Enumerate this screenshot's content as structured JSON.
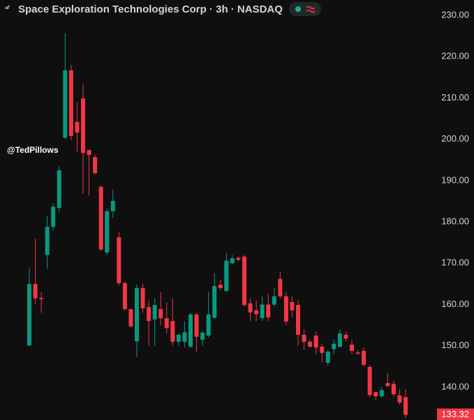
{
  "chart_data": {
    "type": "candlestick",
    "title": "Space Exploration Technologies Corp · 3h · NASDAQ",
    "watermark": "@TedPillows",
    "up_color": "#089981",
    "down_color": "#f23645",
    "ylim": [
      132.06,
      233.71
    ],
    "yticks": [
      {
        "value": 140,
        "label": "140.00"
      },
      {
        "value": 150,
        "label": "150.00"
      },
      {
        "value": 160,
        "label": "160.00"
      },
      {
        "value": 170,
        "label": "170.00"
      },
      {
        "value": 180,
        "label": "180.00"
      },
      {
        "value": 190,
        "label": "190.00"
      },
      {
        "value": 200,
        "label": "200.00"
      },
      {
        "value": 210,
        "label": "210.00"
      },
      {
        "value": 220,
        "label": "220.00"
      },
      {
        "value": 230,
        "label": "230.00"
      }
    ],
    "last_price": 133.32,
    "open": [
      150.1,
      165,
      161.6,
      172,
      178.8,
      183.4,
      200.4,
      216.7,
      204.2,
      209.9,
      197.4,
      195.7,
      188.5,
      172.6,
      182.6,
      176.3,
      165.2,
      158.9,
      151.1,
      164,
      159.4,
      156.4,
      158.9,
      156.7,
      156,
      151,
      151,
      149.8,
      157.6,
      151.5,
      152.5,
      156.8,
      164.8,
      163.3,
      170,
      171.3,
      171.6,
      160.3,
      158.6,
      156.7,
      160,
      160,
      166.2,
      162,
      160.6,
      159.9,
      152.7,
      151,
      152.5,
      149.8,
      145.9,
      149.2,
      149.8,
      152.7,
      150.3,
      148.4,
      148.8,
      144.9,
      138.8,
      137.8,
      141,
      140.8,
      138,
      137.6
    ],
    "high": [
      169,
      176,
      163,
      181.4,
      184.5,
      193.5,
      225.7,
      218,
      209,
      213.5,
      197.5,
      196.3,
      188.8,
      183.2,
      187.8,
      177.6,
      165.5,
      159,
      164.8,
      165,
      161,
      161.5,
      163,
      160.5,
      161.5,
      153,
      156,
      158,
      158,
      153.6,
      163,
      167.5,
      166,
      172.5,
      172,
      171.6,
      172,
      161.5,
      161,
      162,
      162.5,
      164,
      168,
      163,
      162,
      161,
      154,
      151.5,
      153.5,
      150.6,
      149,
      151.5,
      154,
      153.5,
      151.5,
      149,
      149.5,
      145.4,
      139,
      140,
      143.4,
      141.5,
      139.5,
      139.5
    ],
    "low": [
      150,
      160,
      158,
      168.7,
      178,
      182.5,
      200,
      199.8,
      197,
      186.8,
      186.4,
      191.5,
      172.9,
      172,
      181,
      164.6,
      158.5,
      154.4,
      147.3,
      158,
      150,
      150,
      155,
      153,
      150,
      150,
      149.6,
      149.5,
      148.6,
      150,
      152,
      156.5,
      163.5,
      163,
      169.8,
      170.5,
      159.5,
      156,
      156,
      156,
      156,
      159.5,
      161.5,
      155,
      157,
      150,
      149,
      149.5,
      148,
      146,
      145.2,
      148,
      149.5,
      151,
      148,
      147.8,
      145,
      137.6,
      136.8,
      137.5,
      140,
      137.6,
      135.8,
      132.5
    ],
    "close": [
      165,
      161.5,
      161.3,
      178.8,
      183.7,
      192.5,
      216.7,
      200.8,
      201.6,
      196.7,
      196.2,
      191.8,
      173.3,
      182.6,
      185.1,
      165.2,
      158.9,
      154.7,
      164,
      159.1,
      156,
      159.9,
      156.7,
      154.3,
      151,
      152.7,
      153.3,
      157.6,
      152.2,
      153.2,
      157.6,
      164.5,
      164,
      170.6,
      171.2,
      170.8,
      159.9,
      158.1,
      157.7,
      160,
      156.9,
      162,
      162,
      155.9,
      158.6,
      152.7,
      151,
      149.8,
      149.6,
      148.3,
      148.6,
      150.5,
      153,
      151.8,
      148.8,
      148.1,
      145.4,
      138.1,
      137.8,
      139.3,
      140.3,
      138.3,
      136.3,
      133.32
    ]
  }
}
